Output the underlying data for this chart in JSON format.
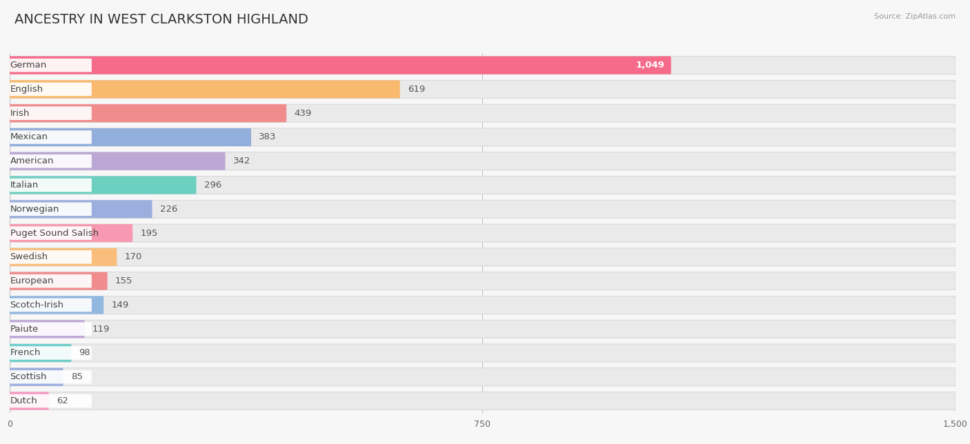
{
  "title": "ANCESTRY IN WEST CLARKSTON HIGHLAND",
  "source_text": "Source: ZipAtlas.com",
  "categories": [
    "German",
    "English",
    "Irish",
    "Mexican",
    "American",
    "Italian",
    "Norwegian",
    "Puget Sound Salish",
    "Swedish",
    "European",
    "Scotch-Irish",
    "Paiute",
    "French",
    "Scottish",
    "Dutch"
  ],
  "values": [
    1049,
    619,
    439,
    383,
    342,
    296,
    226,
    195,
    170,
    155,
    149,
    119,
    98,
    85,
    62
  ],
  "bar_colors": [
    "#F76B8A",
    "#F9B96E",
    "#F08C8C",
    "#92AEDA",
    "#BBA8D4",
    "#6DCFC0",
    "#9BAEDE",
    "#F799B0",
    "#F9BE7C",
    "#F08C8C",
    "#92B8E0",
    "#C0A8D8",
    "#6DCFC8",
    "#9BAEDE",
    "#F799C0"
  ],
  "dot_colors": [
    "#F76B8A",
    "#F9B96E",
    "#F08C8C",
    "#92AEDA",
    "#BBA8D4",
    "#6DCFC0",
    "#9BAEDE",
    "#F799B0",
    "#F9BE7C",
    "#F08C8C",
    "#92B8E0",
    "#C0A8D8",
    "#6DCFC8",
    "#9BAEDE",
    "#F799C0"
  ],
  "xlim": [
    0,
    1500
  ],
  "xticks": [
    0,
    750,
    1500
  ],
  "background_color": "#F7F7F7",
  "bar_bg_color": "#EAEAEA",
  "title_fontsize": 14,
  "label_fontsize": 9.5,
  "value_fontsize": 9.5
}
